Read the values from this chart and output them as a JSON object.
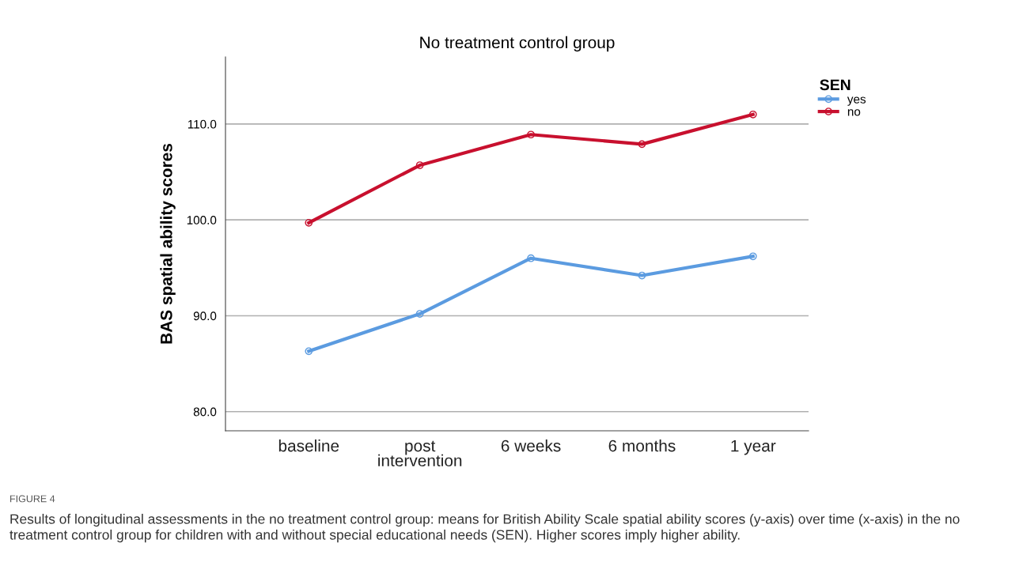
{
  "chart_data": {
    "type": "line",
    "title": "No treatment control group",
    "ylabel": "BAS spatial ability scores",
    "legend_title": "SEN",
    "categories": [
      "baseline",
      "post\nintervention",
      "6 weeks",
      "6 months",
      "1 year"
    ],
    "series": [
      {
        "name": "yes",
        "color": "#5b9be0",
        "values": [
          86.3,
          90.2,
          96.0,
          94.2,
          96.2
        ]
      },
      {
        "name": "no",
        "color": "#c8102e",
        "values": [
          99.7,
          105.7,
          108.9,
          107.9,
          111.0
        ]
      }
    ],
    "ylim": [
      78,
      117
    ],
    "yticks": [
      {
        "value": 80,
        "label": "80.0"
      },
      {
        "value": 90,
        "label": "90.0"
      },
      {
        "value": 100,
        "label": "100.0"
      },
      {
        "value": 110,
        "label": "110.0"
      }
    ],
    "grid": "y",
    "legend": "top right",
    "marker": "circle",
    "line_style": "solid",
    "annotations": [
      "FIGURE 4",
      "Results of longitudinal assessments in the no treatment control group: means for British Ability Scale spatial ability scores (y-axis) over time (x-axis) in the no treatment control group for children with and without special educational needs (SEN). Higher scores imply higher ability."
    ]
  }
}
